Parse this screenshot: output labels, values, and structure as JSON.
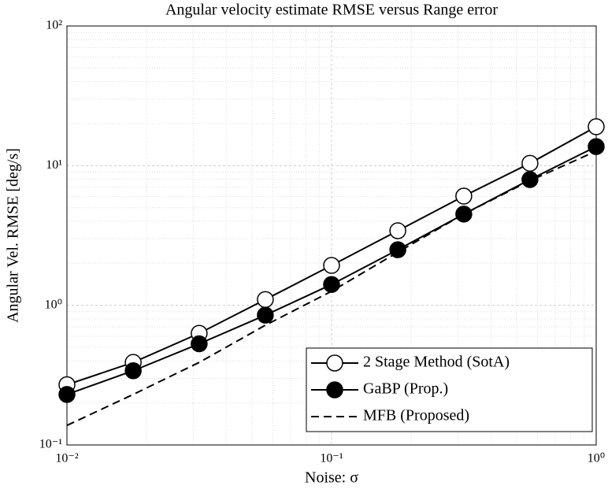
{
  "chart_data": {
    "type": "line",
    "title": "Angular velocity estimate RMSE versus Range error",
    "x_label": "Noise: σ",
    "y_label": "Angular Vel. RMSE [deg/s]",
    "x": [
      0.01,
      0.0178,
      0.0316,
      0.0562,
      0.1,
      0.178,
      0.316,
      0.562,
      1
    ],
    "series": [
      {
        "name": "2 Stage Method (SotA)",
        "color": "#000000",
        "marker": "open-circle",
        "dash": false,
        "values": [
          0.27,
          0.39,
          0.63,
          1.1,
          1.93,
          3.42,
          6.05,
          10.4,
          19.0
        ]
      },
      {
        "name": "GaBP (Prop.)",
        "color": "#000000",
        "marker": "filled-circle",
        "dash": false,
        "values": [
          0.23,
          0.34,
          0.53,
          0.85,
          1.41,
          2.5,
          4.5,
          7.95,
          13.7
        ]
      },
      {
        "name": "MFB (Proposed)",
        "color": "#000000",
        "marker": "none",
        "dash": true,
        "values": [
          0.138,
          0.23,
          0.39,
          0.72,
          1.26,
          2.4,
          4.5,
          7.8,
          12.7
        ]
      }
    ],
    "xlog": true,
    "ylog": true,
    "xlim": [
      0.01,
      1
    ],
    "ylim": [
      0.1,
      100
    ],
    "xticks": [
      {
        "value": 0.01,
        "label": "10⁻²"
      },
      {
        "value": 0.1,
        "label": "10⁻¹"
      },
      {
        "value": 1,
        "label": "10⁰"
      }
    ],
    "yticks": [
      {
        "value": 0.1,
        "label": "10⁻¹"
      },
      {
        "value": 1,
        "label": "10⁰"
      },
      {
        "value": 10,
        "label": "10¹"
      },
      {
        "value": 100,
        "label": "10²"
      }
    ],
    "grid": true,
    "minor_grid": true,
    "legend": "lower right"
  }
}
